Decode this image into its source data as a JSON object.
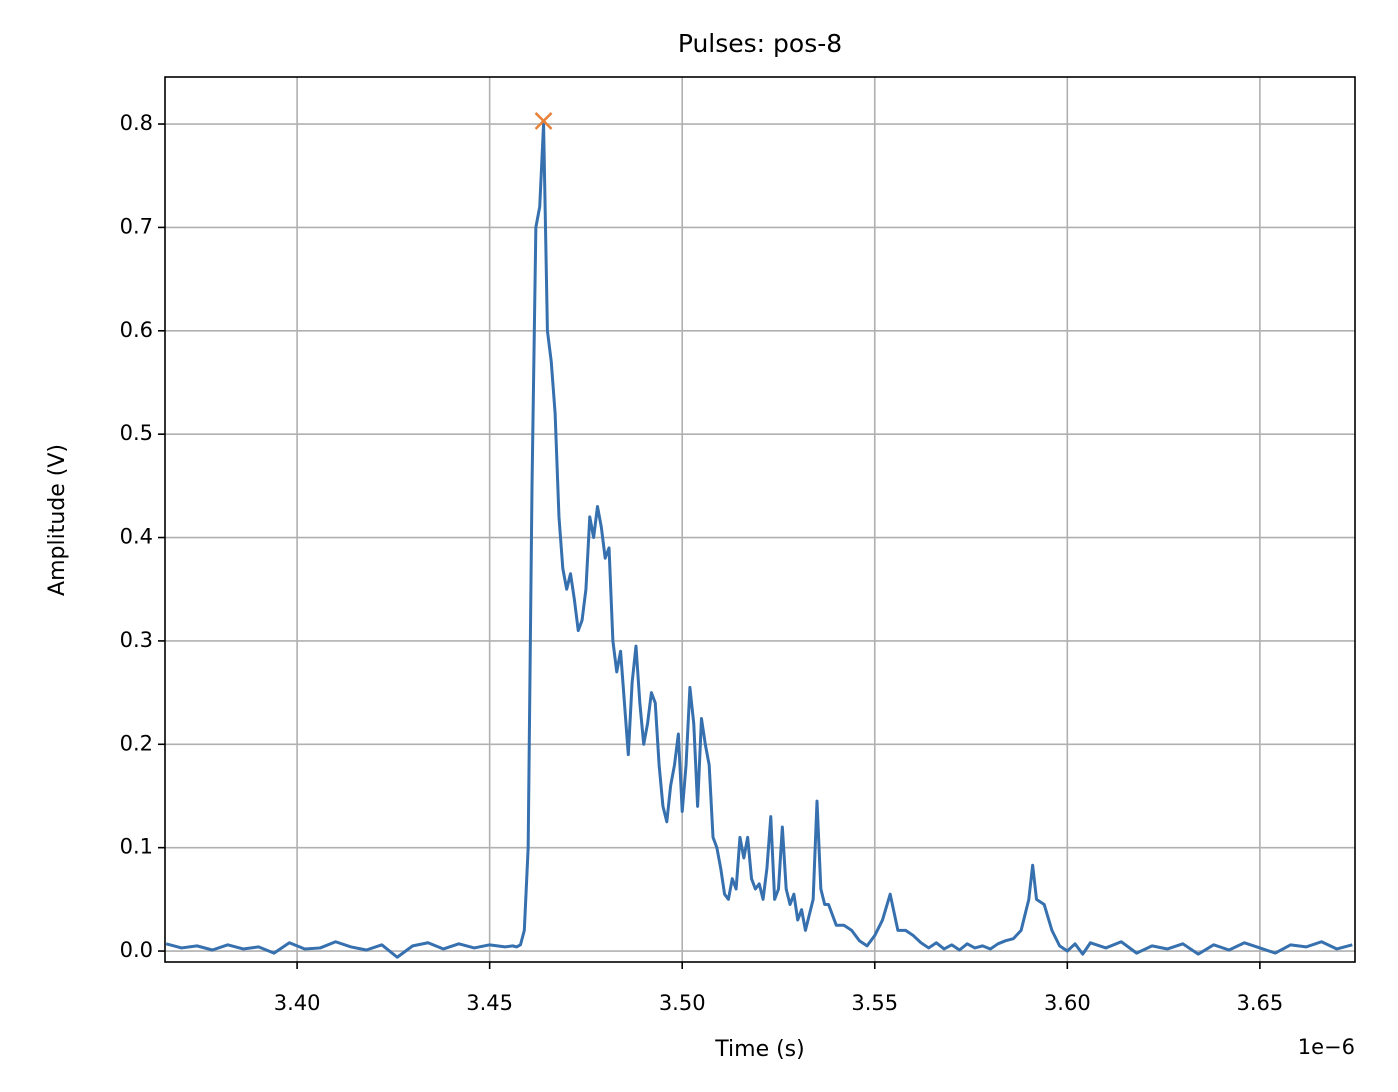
{
  "chart_data": {
    "type": "line",
    "title": "Pulses: pos-8",
    "x_label": "Time (s)",
    "y_label": "Amplitude (V)",
    "x_offset_label": "1e−6",
    "grid": true,
    "xlim": [
      3.3657,
      3.6747
    ],
    "ylim": [
      -0.0106,
      0.8455
    ],
    "xticks": [
      {
        "value": 3.4,
        "label": "3.40"
      },
      {
        "value": 3.45,
        "label": "3.45"
      },
      {
        "value": 3.5,
        "label": "3.50"
      },
      {
        "value": 3.55,
        "label": "3.55"
      },
      {
        "value": 3.6,
        "label": "3.60"
      },
      {
        "value": 3.65,
        "label": "3.65"
      }
    ],
    "yticks": [
      {
        "value": 0,
        "label": "0.0"
      },
      0.1,
      0.2,
      0.3,
      0.4,
      0.5,
      0.6,
      0.7,
      0.8
    ],
    "x": [
      3.366,
      3.37,
      3.374,
      3.378,
      3.382,
      3.386,
      3.39,
      3.394,
      3.398,
      3.402,
      3.406,
      3.41,
      3.414,
      3.418,
      3.422,
      3.426,
      3.43,
      3.434,
      3.438,
      3.442,
      3.446,
      3.45,
      3.454,
      3.456,
      3.457,
      3.458,
      3.459,
      3.46,
      3.461,
      3.462,
      3.463,
      3.464,
      3.465,
      3.466,
      3.467,
      3.468,
      3.469,
      3.47,
      3.471,
      3.472,
      3.473,
      3.474,
      3.475,
      3.476,
      3.477,
      3.478,
      3.479,
      3.48,
      3.481,
      3.482,
      3.483,
      3.484,
      3.485,
      3.486,
      3.487,
      3.488,
      3.489,
      3.49,
      3.491,
      3.492,
      3.493,
      3.494,
      3.495,
      3.496,
      3.497,
      3.498,
      3.499,
      3.5,
      3.501,
      3.502,
      3.503,
      3.504,
      3.505,
      3.506,
      3.507,
      3.508,
      3.509,
      3.51,
      3.511,
      3.512,
      3.513,
      3.514,
      3.515,
      3.516,
      3.517,
      3.518,
      3.519,
      3.52,
      3.521,
      3.522,
      3.523,
      3.524,
      3.525,
      3.526,
      3.527,
      3.528,
      3.529,
      3.53,
      3.531,
      3.532,
      3.533,
      3.534,
      3.535,
      3.536,
      3.537,
      3.538,
      3.539,
      3.54,
      3.542,
      3.544,
      3.546,
      3.548,
      3.55,
      3.552,
      3.554,
      3.556,
      3.558,
      3.56,
      3.562,
      3.564,
      3.566,
      3.568,
      3.57,
      3.572,
      3.574,
      3.576,
      3.578,
      3.58,
      3.582,
      3.584,
      3.586,
      3.588,
      3.59,
      3.591,
      3.592,
      3.594,
      3.596,
      3.598,
      3.6,
      3.602,
      3.604,
      3.606,
      3.61,
      3.614,
      3.618,
      3.622,
      3.626,
      3.63,
      3.634,
      3.638,
      3.642,
      3.646,
      3.65,
      3.654,
      3.658,
      3.662,
      3.666,
      3.67,
      3.674
    ],
    "series": [
      {
        "color": "#3670ae",
        "values": [
          0.007,
          0.003,
          0.005,
          0.001,
          0.006,
          0.002,
          0.004,
          -0.002,
          0.008,
          0.002,
          0.003,
          0.009,
          0.004,
          0.001,
          0.006,
          -0.006,
          0.005,
          0.008,
          0.002,
          0.007,
          0.003,
          0.006,
          0.004,
          0.005,
          0.004,
          0.006,
          0.02,
          0.1,
          0.45,
          0.7,
          0.72,
          0.8,
          0.6,
          0.57,
          0.52,
          0.42,
          0.37,
          0.35,
          0.365,
          0.34,
          0.31,
          0.32,
          0.35,
          0.42,
          0.4,
          0.43,
          0.41,
          0.38,
          0.39,
          0.3,
          0.27,
          0.29,
          0.24,
          0.19,
          0.26,
          0.295,
          0.24,
          0.2,
          0.22,
          0.25,
          0.24,
          0.18,
          0.14,
          0.125,
          0.16,
          0.18,
          0.21,
          0.135,
          0.18,
          0.255,
          0.22,
          0.14,
          0.225,
          0.2,
          0.18,
          0.11,
          0.1,
          0.08,
          0.055,
          0.05,
          0.07,
          0.06,
          0.11,
          0.09,
          0.11,
          0.07,
          0.06,
          0.065,
          0.05,
          0.08,
          0.13,
          0.05,
          0.06,
          0.12,
          0.06,
          0.045,
          0.055,
          0.03,
          0.04,
          0.02,
          0.035,
          0.05,
          0.145,
          0.06,
          0.045,
          0.045,
          0.035,
          0.025,
          0.025,
          0.02,
          0.01,
          0.005,
          0.015,
          0.03,
          0.055,
          0.02,
          0.02,
          0.015,
          0.008,
          0.003,
          0.008,
          0.002,
          0.006,
          0.001,
          0.007,
          0.003,
          0.005,
          0.002,
          0.007,
          0.01,
          0.012,
          0.02,
          0.05,
          0.083,
          0.05,
          0.045,
          0.02,
          0.005,
          0,
          0.007,
          -0.003,
          0.008,
          0.003,
          0.009,
          -0.002,
          0.005,
          0.002,
          0.007,
          -0.003,
          0.006,
          0.001,
          0.008,
          0.003,
          -0.002,
          0.006,
          0.004,
          0.009,
          0.002,
          0.006
        ]
      }
    ],
    "markers": [
      {
        "x": 3.464,
        "y": 0.803,
        "color": "#e8823a"
      }
    ]
  }
}
